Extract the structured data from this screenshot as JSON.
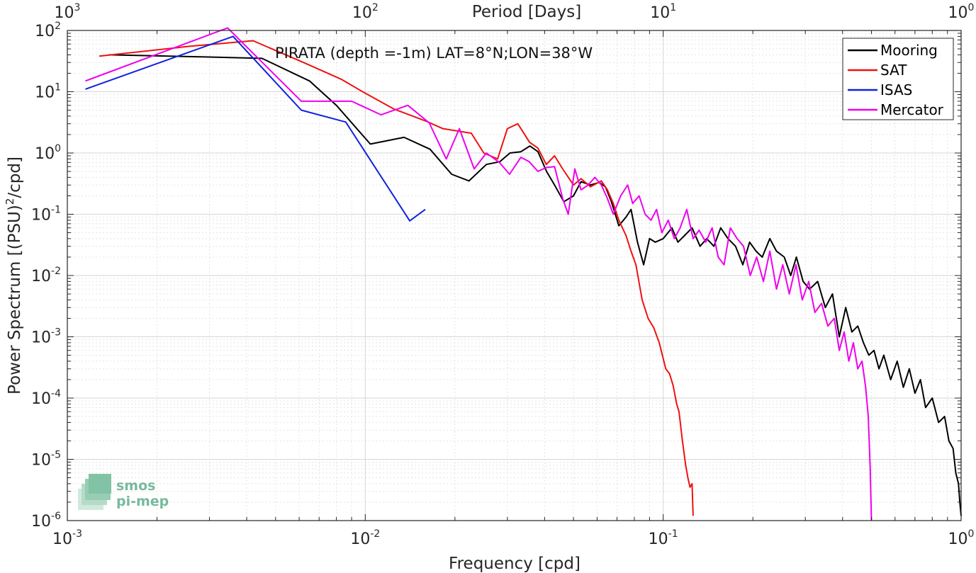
{
  "chart_data": {
    "type": "line",
    "title": "PIRATA (depth =-1m) LAT=8°N;LON=38°W",
    "xlabel": "Frequency [cpd]",
    "ylabel": "Power Spectrum [(PSU)",
    "ylabel_sup": "2",
    "ylabel_tail": "/cpd]",
    "top_axis_label": "Period [Days]",
    "x_scale": "log",
    "y_scale": "log",
    "xlim": [
      0.001,
      1
    ],
    "ylim": [
      1e-06,
      100
    ],
    "grid": true,
    "legend_position": "top-right",
    "x_ticks": [
      {
        "base": "10",
        "exp": "-3",
        "value": 0.001
      },
      {
        "base": "10",
        "exp": "-2",
        "value": 0.01
      },
      {
        "base": "10",
        "exp": "-1",
        "value": 0.1
      },
      {
        "base": "10",
        "exp": "0",
        "value": 1
      }
    ],
    "top_ticks": [
      {
        "base": "10",
        "exp": "3",
        "value": 0.001
      },
      {
        "base": "10",
        "exp": "2",
        "value": 0.01
      },
      {
        "base": "10",
        "exp": "1",
        "value": 0.1
      },
      {
        "base": "10",
        "exp": "0",
        "value": 1
      }
    ],
    "y_ticks": [
      {
        "base": "10",
        "exp": "2",
        "value": 100
      },
      {
        "base": "10",
        "exp": "1",
        "value": 10
      },
      {
        "base": "10",
        "exp": "0",
        "value": 1
      },
      {
        "base": "10",
        "exp": "-1",
        "value": 0.1
      },
      {
        "base": "10",
        "exp": "-2",
        "value": 0.01
      },
      {
        "base": "10",
        "exp": "-3",
        "value": 0.001
      },
      {
        "base": "10",
        "exp": "-4",
        "value": 0.0001
      },
      {
        "base": "10",
        "exp": "-5",
        "value": 1e-05
      },
      {
        "base": "10",
        "exp": "-6",
        "value": 1e-06
      }
    ],
    "series": [
      {
        "name": "Mooring",
        "color": "#000000",
        "points": [
          [
            0.00138,
            40
          ],
          [
            0.0029,
            37
          ],
          [
            0.0045,
            35
          ],
          [
            0.0065,
            15
          ],
          [
            0.008,
            6
          ],
          [
            0.0104,
            1.4
          ],
          [
            0.0135,
            1.8
          ],
          [
            0.0165,
            1.15
          ],
          [
            0.0195,
            0.45
          ],
          [
            0.0223,
            0.35
          ],
          [
            0.0255,
            0.65
          ],
          [
            0.0283,
            0.72
          ],
          [
            0.0306,
            1.0
          ],
          [
            0.0333,
            1.05
          ],
          [
            0.0357,
            1.3
          ],
          [
            0.038,
            1.05
          ],
          [
            0.0406,
            0.5
          ],
          [
            0.0432,
            0.3
          ],
          [
            0.0464,
            0.16
          ],
          [
            0.05,
            0.2
          ],
          [
            0.053,
            0.34
          ],
          [
            0.057,
            0.3
          ],
          [
            0.061,
            0.33
          ],
          [
            0.064,
            0.28
          ],
          [
            0.067,
            0.16
          ],
          [
            0.071,
            0.065
          ],
          [
            0.075,
            0.09
          ],
          [
            0.078,
            0.12
          ],
          [
            0.082,
            0.035
          ],
          [
            0.086,
            0.015
          ],
          [
            0.09,
            0.04
          ],
          [
            0.094,
            0.035
          ],
          [
            0.1,
            0.04
          ],
          [
            0.107,
            0.06
          ],
          [
            0.112,
            0.035
          ],
          [
            0.118,
            0.045
          ],
          [
            0.125,
            0.06
          ],
          [
            0.133,
            0.03
          ],
          [
            0.14,
            0.04
          ],
          [
            0.148,
            0.03
          ],
          [
            0.156,
            0.06
          ],
          [
            0.165,
            0.04
          ],
          [
            0.175,
            0.03
          ],
          [
            0.185,
            0.015
          ],
          [
            0.195,
            0.035
          ],
          [
            0.205,
            0.025
          ],
          [
            0.215,
            0.02
          ],
          [
            0.228,
            0.04
          ],
          [
            0.24,
            0.025
          ],
          [
            0.255,
            0.02
          ],
          [
            0.268,
            0.01
          ],
          [
            0.28,
            0.02
          ],
          [
            0.295,
            0.008
          ],
          [
            0.31,
            0.006
          ],
          [
            0.33,
            0.008
          ],
          [
            0.35,
            0.003
          ],
          [
            0.37,
            0.005
          ],
          [
            0.39,
            0.001
          ],
          [
            0.41,
            0.003
          ],
          [
            0.43,
            0.0012
          ],
          [
            0.45,
            0.0015
          ],
          [
            0.47,
            0.0008
          ],
          [
            0.49,
            0.0005
          ],
          [
            0.51,
            0.0006
          ],
          [
            0.53,
            0.0003
          ],
          [
            0.55,
            0.0005
          ],
          [
            0.58,
            0.0002
          ],
          [
            0.61,
            0.0004
          ],
          [
            0.64,
            0.00015
          ],
          [
            0.67,
            0.0003
          ],
          [
            0.7,
            0.00012
          ],
          [
            0.73,
            0.0002
          ],
          [
            0.76,
            7e-05
          ],
          [
            0.8,
            0.0001
          ],
          [
            0.84,
            4e-05
          ],
          [
            0.88,
            5e-05
          ],
          [
            0.91,
            2e-05
          ],
          [
            0.94,
            1.5e-05
          ],
          [
            0.96,
            6e-06
          ],
          [
            0.98,
            4e-06
          ],
          [
            0.99,
            2e-06
          ],
          [
            1.0,
            1.2e-06
          ]
        ]
      },
      {
        "name": "SAT",
        "color": "#ee1111",
        "points": [
          [
            0.00128,
            38
          ],
          [
            0.00255,
            55
          ],
          [
            0.0042,
            68
          ],
          [
            0.0062,
            30
          ],
          [
            0.0083,
            16
          ],
          [
            0.0098,
            10
          ],
          [
            0.0125,
            5.2
          ],
          [
            0.016,
            3.3
          ],
          [
            0.0182,
            2.5
          ],
          [
            0.0227,
            2.1
          ],
          [
            0.025,
            1.0
          ],
          [
            0.0278,
            0.8
          ],
          [
            0.03,
            2.5
          ],
          [
            0.0325,
            3.0
          ],
          [
            0.0356,
            1.5
          ],
          [
            0.038,
            1.2
          ],
          [
            0.0405,
            0.65
          ],
          [
            0.0432,
            0.9
          ],
          [
            0.046,
            0.55
          ],
          [
            0.05,
            0.3
          ],
          [
            0.053,
            0.38
          ],
          [
            0.057,
            0.28
          ],
          [
            0.062,
            0.35
          ],
          [
            0.065,
            0.25
          ],
          [
            0.068,
            0.15
          ],
          [
            0.071,
            0.08
          ],
          [
            0.075,
            0.045
          ],
          [
            0.078,
            0.025
          ],
          [
            0.081,
            0.015
          ],
          [
            0.085,
            0.004
          ],
          [
            0.089,
            0.002
          ],
          [
            0.093,
            0.0014
          ],
          [
            0.097,
            0.0008
          ],
          [
            0.102,
            0.0003
          ],
          [
            0.105,
            0.00025
          ],
          [
            0.108,
            0.00016
          ],
          [
            0.111,
            8e-05
          ],
          [
            0.113,
            6e-05
          ],
          [
            0.116,
            2e-05
          ],
          [
            0.119,
            8e-06
          ],
          [
            0.121,
            5e-06
          ],
          [
            0.123,
            3.5e-06
          ],
          [
            0.125,
            4e-06
          ],
          [
            0.126,
            1.2e-06
          ]
        ]
      },
      {
        "name": "ISAS",
        "color": "#1122dd",
        "points": [
          [
            0.00115,
            11
          ],
          [
            0.0036,
            80
          ],
          [
            0.0061,
            5
          ],
          [
            0.0086,
            3.2
          ],
          [
            0.0141,
            0.078
          ],
          [
            0.0159,
            0.12
          ]
        ]
      },
      {
        "name": "Mercator",
        "color": "#ee00ee",
        "points": [
          [
            0.00115,
            15
          ],
          [
            0.00345,
            110
          ],
          [
            0.0061,
            7
          ],
          [
            0.009,
            7
          ],
          [
            0.0113,
            4.2
          ],
          [
            0.0139,
            6
          ],
          [
            0.0164,
            3.1
          ],
          [
            0.0187,
            0.8
          ],
          [
            0.0207,
            2.5
          ],
          [
            0.0232,
            0.55
          ],
          [
            0.0255,
            1.0
          ],
          [
            0.0282,
            0.7
          ],
          [
            0.0305,
            0.45
          ],
          [
            0.0333,
            0.85
          ],
          [
            0.0355,
            0.72
          ],
          [
            0.038,
            0.5
          ],
          [
            0.0405,
            0.58
          ],
          [
            0.0432,
            0.6
          ],
          [
            0.046,
            0.18
          ],
          [
            0.048,
            0.1
          ],
          [
            0.0505,
            0.55
          ],
          [
            0.053,
            0.25
          ],
          [
            0.056,
            0.3
          ],
          [
            0.059,
            0.4
          ],
          [
            0.062,
            0.3
          ],
          [
            0.065,
            0.18
          ],
          [
            0.068,
            0.1
          ],
          [
            0.072,
            0.2
          ],
          [
            0.076,
            0.3
          ],
          [
            0.079,
            0.15
          ],
          [
            0.083,
            0.2
          ],
          [
            0.087,
            0.1
          ],
          [
            0.091,
            0.08
          ],
          [
            0.095,
            0.12
          ],
          [
            0.099,
            0.05
          ],
          [
            0.104,
            0.08
          ],
          [
            0.109,
            0.04
          ],
          [
            0.114,
            0.06
          ],
          [
            0.12,
            0.12
          ],
          [
            0.126,
            0.04
          ],
          [
            0.132,
            0.055
          ],
          [
            0.139,
            0.035
          ],
          [
            0.146,
            0.06
          ],
          [
            0.153,
            0.02
          ],
          [
            0.16,
            0.015
          ],
          [
            0.168,
            0.06
          ],
          [
            0.177,
            0.04
          ],
          [
            0.186,
            0.03
          ],
          [
            0.196,
            0.01
          ],
          [
            0.206,
            0.02
          ],
          [
            0.217,
            0.008
          ],
          [
            0.228,
            0.025
          ],
          [
            0.24,
            0.006
          ],
          [
            0.252,
            0.015
          ],
          [
            0.265,
            0.005
          ],
          [
            0.279,
            0.015
          ],
          [
            0.293,
            0.004
          ],
          [
            0.308,
            0.008
          ],
          [
            0.323,
            0.0025
          ],
          [
            0.34,
            0.0035
          ],
          [
            0.357,
            0.0015
          ],
          [
            0.375,
            0.002
          ],
          [
            0.39,
            0.0006
          ],
          [
            0.405,
            0.0012
          ],
          [
            0.42,
            0.0004
          ],
          [
            0.435,
            0.0008
          ],
          [
            0.45,
            0.0003
          ],
          [
            0.465,
            0.0004
          ],
          [
            0.478,
            0.00015
          ],
          [
            0.488,
            5e-05
          ],
          [
            0.495,
            8e-06
          ],
          [
            0.5,
            1e-06
          ]
        ]
      }
    ]
  },
  "logo": {
    "line1": "smos",
    "line2": "pi-mep",
    "color": "#5fae8c"
  }
}
